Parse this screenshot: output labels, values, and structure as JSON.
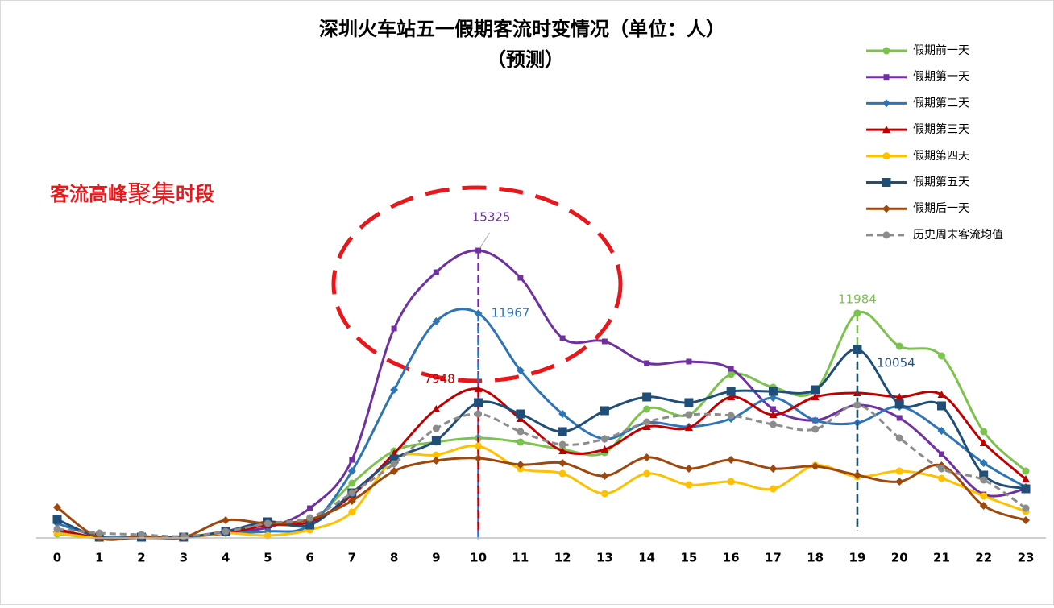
{
  "chart_data": {
    "type": "line",
    "title": "深圳火车站五一假期客流时变情况（单位：人）",
    "subtitle": "（预测）",
    "annotation": [
      "客流高峰",
      "聚集",
      "时段"
    ],
    "x": [
      0,
      1,
      2,
      3,
      4,
      5,
      6,
      7,
      8,
      9,
      10,
      11,
      12,
      13,
      14,
      15,
      16,
      17,
      18,
      19,
      20,
      21,
      22,
      23
    ],
    "xlim": [
      0,
      23
    ],
    "ylim": [
      0,
      16000
    ],
    "smooth": true,
    "legend": "top-right",
    "series": [
      {
        "name": "假期前一天",
        "color": "#7cc24e",
        "marker": "circle",
        "labeled": [
          19
        ],
        "values": [
          215,
          0,
          43,
          43,
          343,
          687,
          859,
          2919,
          4636,
          5109,
          5323,
          5109,
          4722,
          4551,
          6869,
          6568,
          8715,
          8028,
          7856,
          11984,
          10217,
          9702,
          5667,
          3563
        ]
      },
      {
        "name": "假期第一天",
        "color": "#7030a0",
        "marker": "square",
        "labeled": [
          10
        ],
        "values": [
          343,
          0,
          0,
          0,
          343,
          558,
          1588,
          4164,
          11162,
          14167,
          15325,
          13866,
          10647,
          10475,
          9316,
          9402,
          9015,
          6869,
          6268,
          7083,
          6397,
          4465,
          2318,
          2619
        ]
      },
      {
        "name": "假期第二天",
        "color": "#2e75b6",
        "marker": "diamond",
        "labeled": [
          10
        ],
        "values": [
          773,
          86,
          43,
          43,
          258,
          343,
          687,
          3563,
          7899,
          11548,
          11967,
          8929,
          6611,
          5280,
          6139,
          5924,
          6354,
          7470,
          6268,
          6139,
          6998,
          5710,
          3992,
          2705
        ]
      },
      {
        "name": "假期第三天",
        "color": "#c00000",
        "marker": "triangle",
        "labeled": [
          10
        ],
        "values": [
          472,
          0,
          0,
          43,
          258,
          687,
          859,
          2275,
          4508,
          6869,
          7948,
          6354,
          4636,
          4722,
          5924,
          5881,
          7513,
          6568,
          7513,
          7727,
          7513,
          7642,
          5066,
          3134
        ]
      },
      {
        "name": "假期第四天",
        "color": "#ffc000",
        "marker": "circle",
        "labeled": [],
        "values": [
          258,
          0,
          0,
          0,
          258,
          129,
          429,
          1374,
          4207,
          4422,
          4894,
          3692,
          3434,
          2361,
          3434,
          2833,
          3005,
          2619,
          3864,
          3263,
          3563,
          3177,
          2232,
          1417
        ]
      },
      {
        "name": "假期第五天",
        "color": "#1f4e79",
        "marker": "bigsquare",
        "labeled": [
          19
        ],
        "values": [
          987,
          43,
          43,
          43,
          343,
          859,
          687,
          2404,
          4207,
          5195,
          7212,
          6611,
          5667,
          6783,
          7513,
          7212,
          7813,
          7813,
          7899,
          10054,
          7126,
          7041,
          3349,
          2619
        ]
      },
      {
        "name": "假期后一天",
        "color": "#9e480e",
        "marker": "diamond",
        "labeled": [],
        "values": [
          1631,
          0,
          86,
          43,
          944,
          773,
          987,
          1975,
          3563,
          4121,
          4250,
          3907,
          3992,
          3306,
          4293,
          3692,
          4164,
          3692,
          3821,
          3349,
          3005,
          3864,
          1717,
          944
        ]
      },
      {
        "name": "历史周末客流均值",
        "color": "#8c8c8c",
        "marker": "circle",
        "dashed": true,
        "labeled": [],
        "values": [
          472,
          258,
          172,
          86,
          343,
          773,
          1073,
          2404,
          3950,
          5838,
          6611,
          5667,
          4980,
          5280,
          6182,
          6568,
          6525,
          6053,
          5796,
          7083,
          5323,
          3692,
          3091,
          1588
        ]
      }
    ]
  }
}
